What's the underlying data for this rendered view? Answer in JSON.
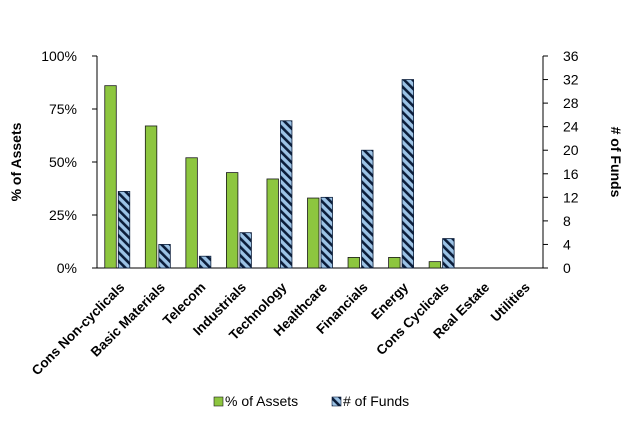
{
  "chart_data": {
    "type": "bar",
    "categories": [
      "Cons Non-cyclicals",
      "Basic Materials",
      "Telecom",
      "Industrials",
      "Technology",
      "Healthcare",
      "Financials",
      "Energy",
      "Cons Cyclicals",
      "Real Estate",
      "Utilities"
    ],
    "series": [
      {
        "name": "% of Assets",
        "axis": "left",
        "color": "#8dc63f",
        "values": [
          86,
          67,
          52,
          45,
          42,
          33,
          5,
          5,
          3,
          0,
          0
        ]
      },
      {
        "name": "# of Funds",
        "axis": "right",
        "color": "#9cc3e6",
        "pattern": "diagonal-stripes",
        "values": [
          13,
          4,
          2,
          6,
          25,
          12,
          20,
          32,
          5,
          0,
          0
        ]
      }
    ],
    "y_left": {
      "label": "% of Assets",
      "ticks": [
        "0%",
        "25%",
        "50%",
        "75%",
        "100%"
      ],
      "ylim": [
        0,
        100
      ]
    },
    "y_right": {
      "label": "# of Funds",
      "ticks": [
        "0",
        "4",
        "8",
        "12",
        "16",
        "20",
        "24",
        "28",
        "32",
        "36"
      ],
      "ylim": [
        0,
        36
      ]
    },
    "legend": {
      "position": "bottom"
    },
    "grid": false
  }
}
